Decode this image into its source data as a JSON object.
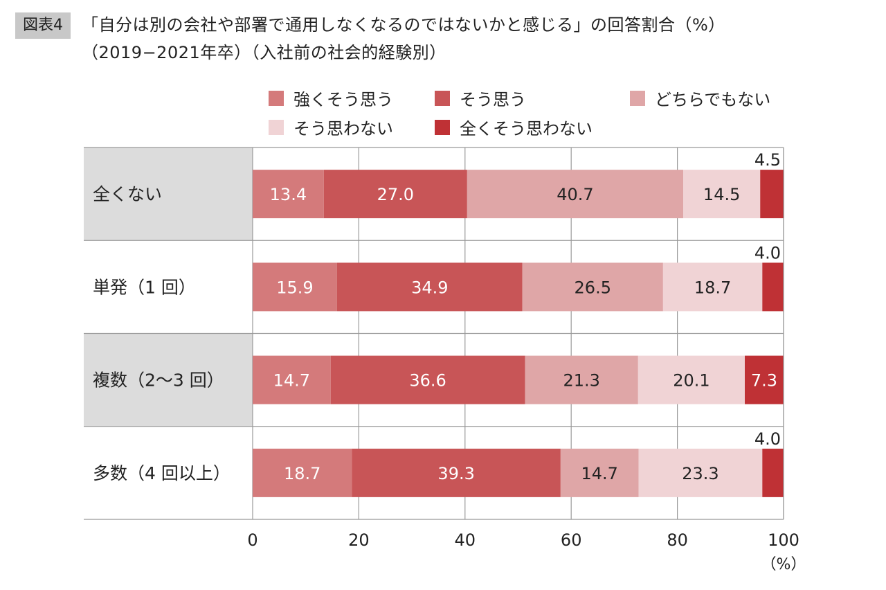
{
  "header": {
    "figure_tag": "図表4",
    "title_line1": "「自分は別の会社や部署で通用しなくなるのではないかと感じる」の回答割合（%）",
    "title_line2": "（2019−2021年卒）（入社前の社会的経験別）"
  },
  "chart_data": {
    "type": "bar",
    "orientation": "horizontal",
    "stacked": true,
    "title": "「自分は別の会社や部署で通用しなくなるのではないかと感じる」の回答割合（%）",
    "subtitle": "（2019−2021年卒）（入社前の社会的経験別）",
    "categories": [
      "全くない",
      "単発（1 回）",
      "複数（2〜3 回）",
      "多数（4 回以上）"
    ],
    "series": [
      {
        "name": "強くそう思う",
        "color": "#d47a7b",
        "values": [
          13.4,
          15.9,
          14.7,
          18.7
        ]
      },
      {
        "name": "そう思う",
        "color": "#c85557",
        "values": [
          27.0,
          34.9,
          36.6,
          39.3
        ]
      },
      {
        "name": "どちらでもない",
        "color": "#dfa6a7",
        "values": [
          40.7,
          26.5,
          21.3,
          14.7
        ]
      },
      {
        "name": "そう思わない",
        "color": "#f0d3d5",
        "values": [
          14.5,
          18.7,
          20.1,
          23.3
        ]
      },
      {
        "name": "全くそう思わない",
        "color": "#bf3135",
        "values": [
          4.5,
          4.0,
          7.3,
          4.0
        ]
      }
    ],
    "value_labels": [
      [
        "13.4",
        "27.0",
        "40.7",
        "14.5",
        "4.5"
      ],
      [
        "15.9",
        "34.9",
        "26.5",
        "18.7",
        "4.0"
      ],
      [
        "14.7",
        "36.6",
        "21.3",
        "20.1",
        "7.3"
      ],
      [
        "18.7",
        "39.3",
        "14.7",
        "23.3",
        "4.0"
      ]
    ],
    "xlim": [
      0,
      100
    ],
    "xticks": [
      "0",
      "20",
      "40",
      "60",
      "80",
      "100"
    ],
    "xlabel": "（%）",
    "grid": true,
    "legend_position": "top"
  }
}
